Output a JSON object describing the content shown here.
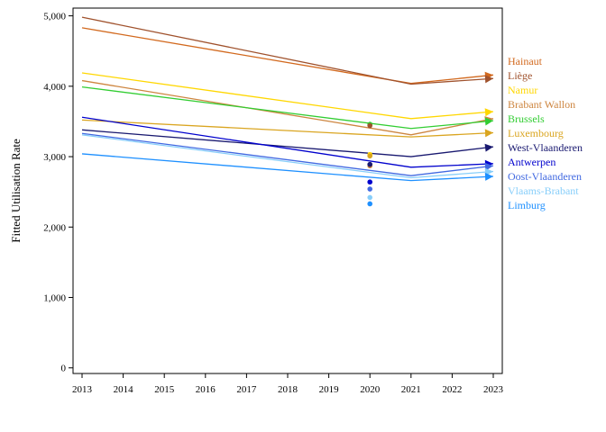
{
  "chart_data": {
    "type": "line",
    "title": "",
    "xlabel": "",
    "ylabel": "Fitted Utilisation Rate",
    "x_ticks": [
      2013,
      2014,
      2015,
      2016,
      2017,
      2018,
      2019,
      2020,
      2021,
      2022,
      2023
    ],
    "xlim": [
      2013,
      2023
    ],
    "y_ticks": [
      0,
      1000,
      2000,
      3000,
      4000,
      5000
    ],
    "y_tick_labels": [
      "0",
      "1,000",
      "2,000",
      "3,000",
      "4,000",
      "5,000"
    ],
    "ylim": [
      -80,
      5110
    ],
    "grid": false,
    "legend_placement": "right",
    "series": [
      {
        "name": "Hainaut",
        "color": "#D2691E",
        "x": [
          2013,
          2021,
          2023
        ],
        "values": [
          4830,
          4040,
          4160
        ],
        "point_2020": null
      },
      {
        "name": "Liège",
        "color": "#A0522D",
        "x": [
          2013,
          2021,
          2023
        ],
        "values": [
          4980,
          4030,
          4110
        ],
        "point_2020": null
      },
      {
        "name": "Namur",
        "color": "#FFD700",
        "x": [
          2013,
          2021,
          2023
        ],
        "values": [
          4190,
          3540,
          3640
        ],
        "point_2020": 3030
      },
      {
        "name": "Brabant Wallon",
        "color": "#CD853F",
        "x": [
          2013,
          2021,
          2023
        ],
        "values": [
          4080,
          3310,
          3540
        ],
        "point_2020": 2870
      },
      {
        "name": "Brussels",
        "color": "#32CD32",
        "x": [
          2013,
          2021,
          2023
        ],
        "values": [
          3990,
          3400,
          3510
        ],
        "point_2020": 3460
      },
      {
        "name": "Luxembourg",
        "color": "#DAA520",
        "x": [
          2013,
          2021,
          2023
        ],
        "values": [
          3520,
          3280,
          3340
        ],
        "point_2020": 3010
      },
      {
        "name": "West-Vlaanderen",
        "color": "#191970",
        "x": [
          2013,
          2021,
          2023
        ],
        "values": [
          3380,
          3000,
          3140
        ],
        "point_2020": 2890
      },
      {
        "name": "Antwerpen",
        "color": "#0000CD",
        "x": [
          2013,
          2021,
          2023
        ],
        "values": [
          3560,
          2850,
          2900
        ],
        "point_2020": 2640
      },
      {
        "name": "Oost-Vlaanderen",
        "color": "#4169E1",
        "x": [
          2013,
          2021,
          2023
        ],
        "values": [
          3330,
          2730,
          2870
        ],
        "point_2020": 2540
      },
      {
        "name": "Vlaams-Brabant",
        "color": "#87CEFA",
        "x": [
          2013,
          2021,
          2023
        ],
        "values": [
          3310,
          2700,
          2790
        ],
        "point_2020": 2420
      },
      {
        "name": "Limburg",
        "color": "#1E90FF",
        "x": [
          2013,
          2021,
          2023
        ],
        "values": [
          3040,
          2660,
          2720
        ],
        "point_2020": 2330
      }
    ],
    "extra_points_2020": [
      {
        "value": 3440,
        "color": "#A0522D"
      }
    ]
  }
}
